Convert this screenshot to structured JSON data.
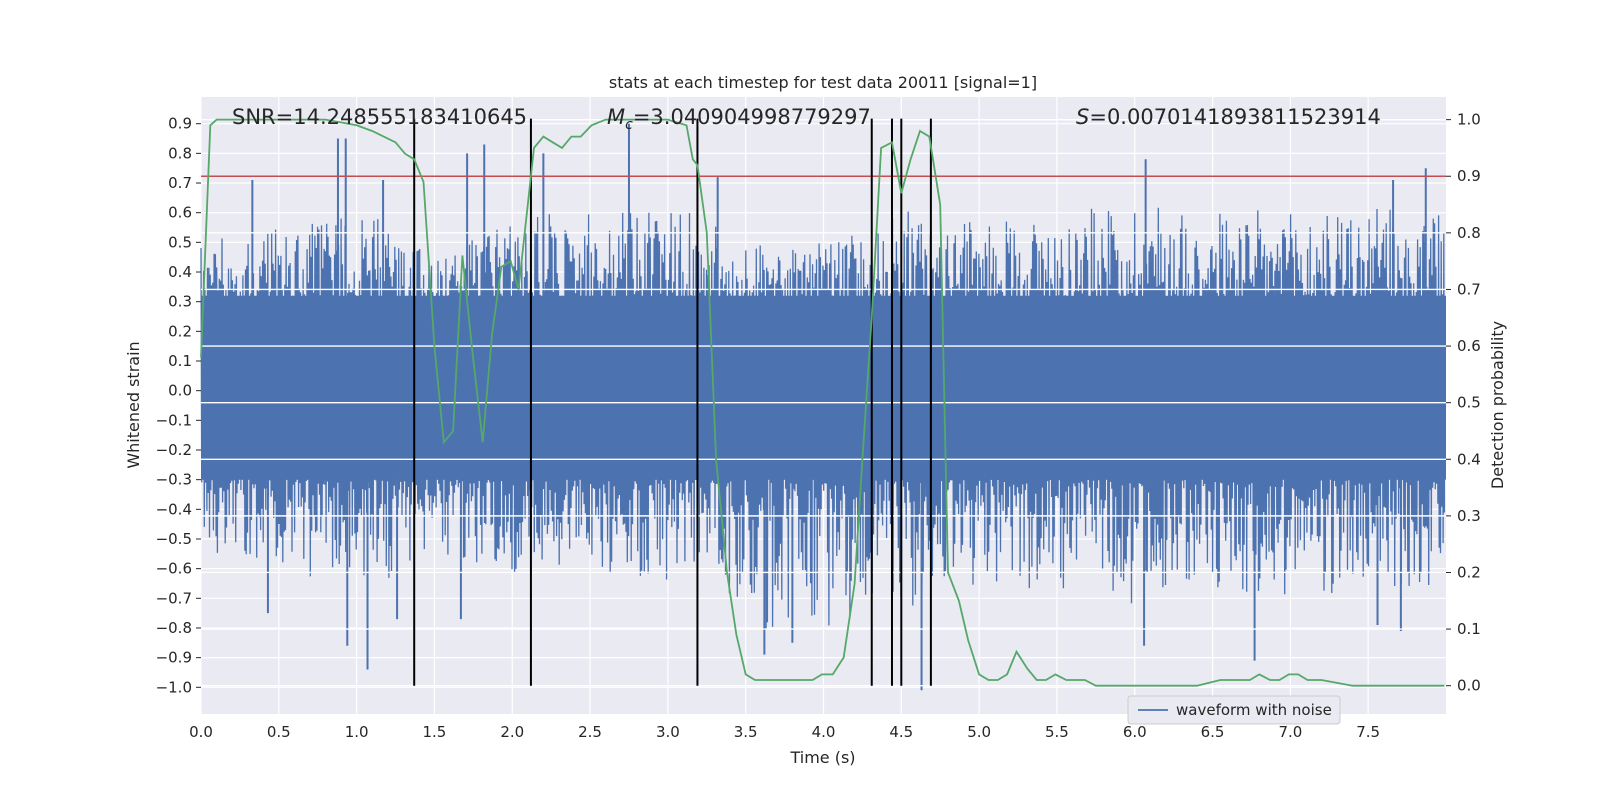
{
  "chart_data": {
    "type": "line",
    "title": "stats at each timestep for test data 20011 [signal=1]",
    "xlabel": "Time (s)",
    "ylabel_left": "Whitened strain",
    "ylabel_right": "Detection probability",
    "xlim": [
      0.0,
      8.0
    ],
    "ylim_left": [
      -1.09,
      0.99
    ],
    "ylim_right": [
      -0.05,
      1.04
    ],
    "x_ticks": [
      "0.0",
      "0.5",
      "1.0",
      "1.5",
      "2.0",
      "2.5",
      "3.0",
      "3.5",
      "4.0",
      "4.5",
      "5.0",
      "5.5",
      "6.0",
      "6.5",
      "7.0",
      "7.5"
    ],
    "y_left_ticks": [
      "0.9",
      "0.8",
      "0.7",
      "0.6",
      "0.5",
      "0.4",
      "0.3",
      "0.2",
      "0.1",
      "0.0",
      "−0.1",
      "−0.2",
      "−0.3",
      "−0.4",
      "−0.5",
      "−0.6",
      "−0.7",
      "−0.8",
      "−0.9",
      "−1.0"
    ],
    "y_right_ticks": [
      "1.0",
      "0.9",
      "0.8",
      "0.7",
      "0.6",
      "0.5",
      "0.4",
      "0.3",
      "0.2",
      "0.1",
      "0.0"
    ],
    "grid": true,
    "legend_placement": "lower-right",
    "annotations": {
      "snr": "SNR=14.248555183410645",
      "mc_sym": "M",
      "mc_sub": "c",
      "mc_val": "=3.040904998779297",
      "s_sym": "S",
      "s_val": "=0.0070141893811523914"
    },
    "threshold_right": 0.9,
    "vertical_lines_x": [
      1.37,
      2.12,
      3.19,
      4.31,
      4.44,
      4.5,
      4.69
    ],
    "series": [
      {
        "name": "waveform with noise",
        "color": "#4c72b0",
        "axis": "left",
        "envelope_x": [
          0.0,
          0.5,
          1.0,
          1.4,
          1.5,
          2.0,
          2.2,
          3.2,
          3.4,
          3.6,
          3.8,
          4.0,
          4.3,
          4.5,
          4.7,
          4.8,
          5.0,
          5.6,
          6.0,
          6.5,
          7.0,
          7.5,
          7.99
        ],
        "envelope_upper": [
          0.5,
          0.55,
          0.62,
          0.5,
          0.45,
          0.58,
          0.6,
          0.62,
          0.5,
          0.5,
          0.48,
          0.5,
          0.55,
          0.62,
          0.58,
          0.55,
          0.58,
          0.6,
          0.65,
          0.62,
          0.6,
          0.62,
          0.6
        ],
        "envelope_lower": [
          -0.55,
          -0.58,
          -0.7,
          -0.58,
          -0.55,
          -0.62,
          -0.6,
          -0.65,
          -0.7,
          -0.8,
          -0.82,
          -0.8,
          -0.75,
          -0.8,
          -0.72,
          -0.68,
          -0.65,
          -0.68,
          -0.72,
          -0.68,
          -0.7,
          -0.68,
          -0.65
        ],
        "spikes_up": [
          [
            0.33,
            0.71
          ],
          [
            0.88,
            0.85
          ],
          [
            0.93,
            0.85
          ],
          [
            1.17,
            0.71
          ],
          [
            1.71,
            0.8
          ],
          [
            1.82,
            0.83
          ],
          [
            2.2,
            0.8
          ],
          [
            2.75,
            0.9
          ],
          [
            3.32,
            0.72
          ],
          [
            6.07,
            0.78
          ],
          [
            7.66,
            0.71
          ],
          [
            7.87,
            0.75
          ]
        ],
        "spikes_down": [
          [
            0.43,
            -0.75
          ],
          [
            0.94,
            -0.86
          ],
          [
            1.07,
            -0.94
          ],
          [
            1.26,
            -0.77
          ],
          [
            1.67,
            -0.77
          ],
          [
            3.8,
            -0.85
          ],
          [
            3.62,
            -0.89
          ],
          [
            4.63,
            -1.01
          ],
          [
            6.06,
            -0.86
          ],
          [
            6.77,
            -0.91
          ],
          [
            7.56,
            -0.79
          ],
          [
            7.71,
            -0.81
          ]
        ]
      },
      {
        "name": "",
        "color": "#55a868",
        "axis": "right",
        "x": [
          0.0,
          0.06,
          0.1,
          0.2,
          0.4,
          0.6,
          0.8,
          1.0,
          1.1,
          1.25,
          1.31,
          1.37,
          1.43,
          1.5,
          1.56,
          1.62,
          1.68,
          1.74,
          1.81,
          1.87,
          1.93,
          1.99,
          2.04,
          2.08,
          2.14,
          2.2,
          2.26,
          2.32,
          2.38,
          2.44,
          2.51,
          2.6,
          2.7,
          2.9,
          3.0,
          3.12,
          3.16,
          3.19,
          3.25,
          3.31,
          3.38,
          3.44,
          3.5,
          3.56,
          3.65,
          3.75,
          3.85,
          3.93,
          3.99,
          4.06,
          4.13,
          4.2,
          4.25,
          4.31,
          4.37,
          4.44,
          4.5,
          4.56,
          4.62,
          4.68,
          4.75,
          4.8,
          4.87,
          4.93,
          5.0,
          5.06,
          5.12,
          5.18,
          5.24,
          5.31,
          5.37,
          5.43,
          5.49,
          5.56,
          5.62,
          5.68,
          5.75,
          5.85,
          6.0,
          6.2,
          6.4,
          6.55,
          6.62,
          6.68,
          6.74,
          6.8,
          6.87,
          6.93,
          6.99,
          7.05,
          7.11,
          7.2,
          7.4,
          7.6,
          7.99
        ],
        "y": [
          0.58,
          0.99,
          1.0,
          1.0,
          1.0,
          1.0,
          1.0,
          0.99,
          0.98,
          0.96,
          0.94,
          0.93,
          0.89,
          0.6,
          0.43,
          0.45,
          0.76,
          0.6,
          0.43,
          0.62,
          0.74,
          0.75,
          0.7,
          0.8,
          0.95,
          0.97,
          0.96,
          0.95,
          0.97,
          0.97,
          0.99,
          1.0,
          1.0,
          1.0,
          1.0,
          0.99,
          0.93,
          0.92,
          0.8,
          0.4,
          0.2,
          0.09,
          0.02,
          0.01,
          0.01,
          0.01,
          0.01,
          0.01,
          0.02,
          0.02,
          0.05,
          0.18,
          0.4,
          0.65,
          0.95,
          0.96,
          0.87,
          0.93,
          0.98,
          0.97,
          0.85,
          0.2,
          0.15,
          0.08,
          0.02,
          0.01,
          0.01,
          0.02,
          0.06,
          0.03,
          0.01,
          0.01,
          0.02,
          0.01,
          0.01,
          0.01,
          0.0,
          0.0,
          0.0,
          0.0,
          0.0,
          0.01,
          0.01,
          0.01,
          0.01,
          0.02,
          0.01,
          0.01,
          0.02,
          0.02,
          0.01,
          0.01,
          0.0,
          0.0,
          0.0
        ]
      }
    ],
    "colors": {
      "background": "#eaeaf2",
      "grid": "#ffffff",
      "threshold": "#c44e52",
      "vline": "#000000"
    }
  }
}
